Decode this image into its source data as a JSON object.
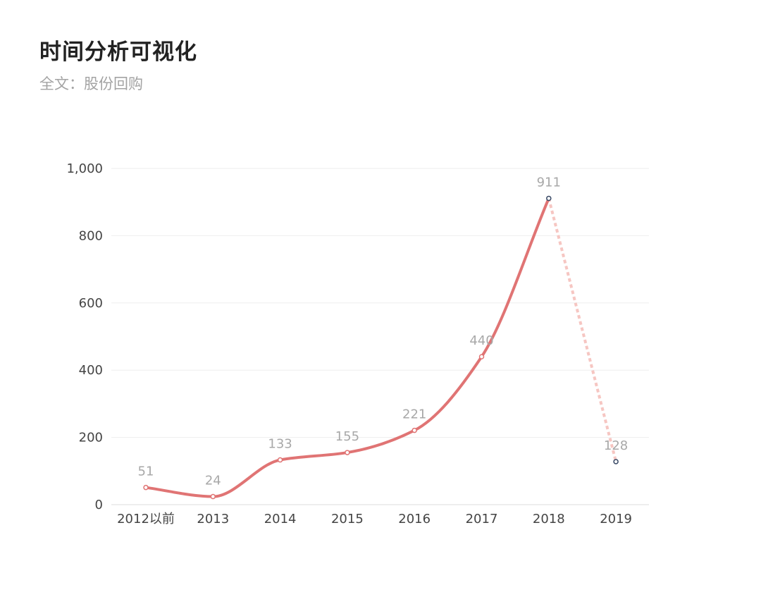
{
  "header": {
    "title": "时间分析可视化",
    "subtitle": "全文：股份回购"
  },
  "colors": {
    "line": "#e07474",
    "dashed_line": "#f6c6c2",
    "last_point_stroke": "#3a4a66",
    "grid": "#eeeeee",
    "axis": "#dddddd"
  },
  "chart_data": {
    "type": "line",
    "categories": [
      "2012以前",
      "2013",
      "2014",
      "2015",
      "2016",
      "2017",
      "2018",
      "2019"
    ],
    "values": [
      51,
      24,
      133,
      155,
      221,
      440,
      911,
      128
    ],
    "data_labels": [
      "51",
      "24",
      "133",
      "155",
      "221",
      "440",
      "911",
      "128"
    ],
    "yticks": [
      0,
      200,
      400,
      600,
      800,
      1000
    ],
    "ytick_labels": [
      "0",
      "200",
      "400",
      "600",
      "800",
      "1,000"
    ],
    "ylim": [
      0,
      1000
    ],
    "smooth": true,
    "dashed_last_segment": true,
    "grid": true,
    "legend": "none",
    "title": "",
    "xlabel": "",
    "ylabel": ""
  }
}
